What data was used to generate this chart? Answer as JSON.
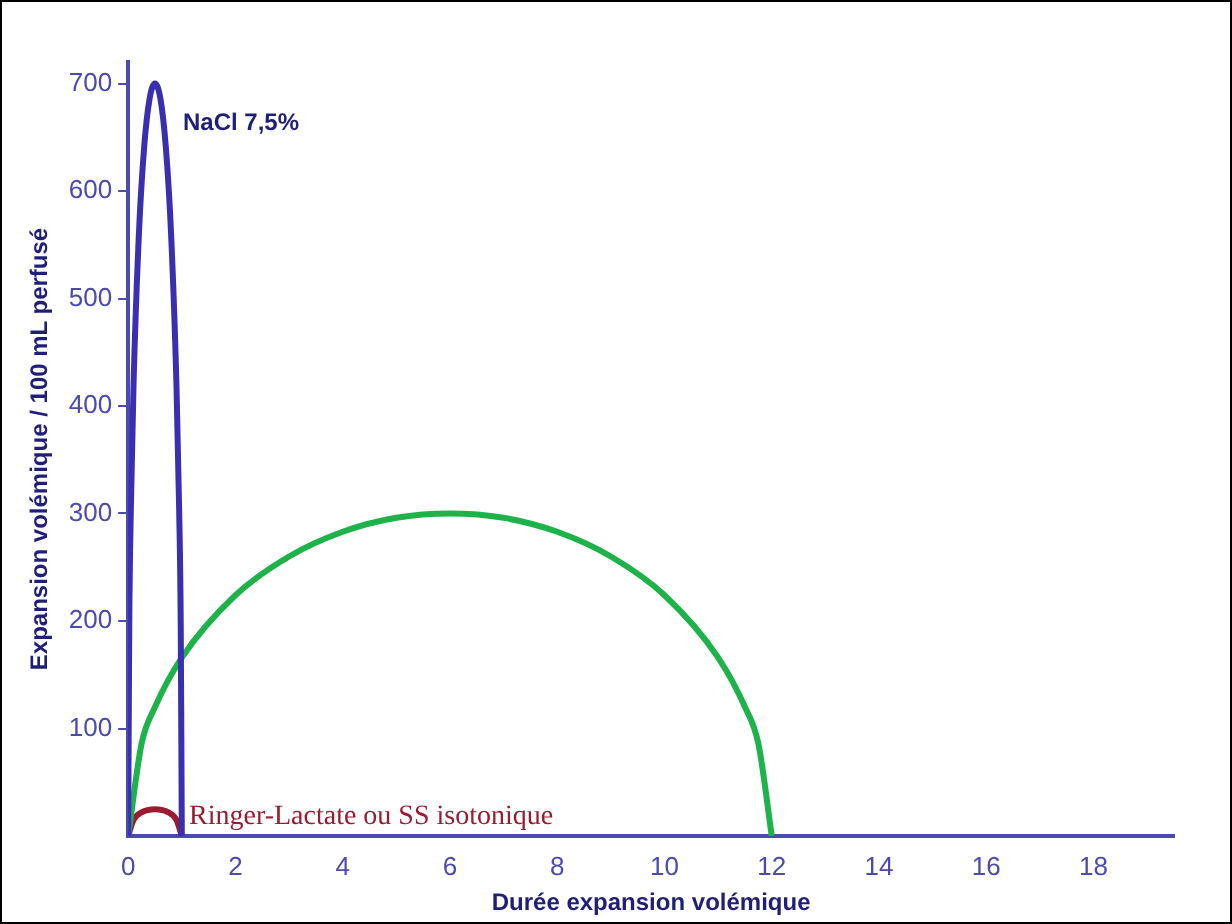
{
  "chart_data": {
    "type": "line",
    "xlabel": "Durée expansion volémique",
    "ylabel": "Expansion volémique / 100 mL perfusé",
    "xlim": [
      0,
      19.5
    ],
    "xticks": [
      0,
      2,
      4,
      6,
      8,
      10,
      12,
      14,
      16,
      18
    ],
    "ylim": [
      0,
      720
    ],
    "yticks": [
      100,
      200,
      300,
      400,
      500,
      600,
      700
    ],
    "grid": false,
    "legend": false,
    "marker": "none",
    "line_style": "solid",
    "series": [
      {
        "name": "NaCl 7,5%",
        "color": "#3a2fb0",
        "x": [
          0,
          0.02,
          0.05,
          0.1,
          0.2,
          0.3,
          0.4,
          0.5,
          0.6,
          0.7,
          0.8,
          0.9,
          0.95,
          0.98,
          1
        ],
        "values": [
          0,
          196,
          305,
          420,
          560,
          642,
          686,
          700,
          686,
          642,
          560,
          420,
          305,
          196,
          0
        ]
      },
      {
        "color": "#1db34a",
        "x": [
          0,
          0.25,
          0.5,
          1,
          2,
          3,
          4,
          5,
          6,
          7,
          8,
          9,
          10,
          11,
          11.5,
          11.75,
          12
        ],
        "values": [
          0,
          86,
          120,
          166,
          224,
          260,
          283,
          296,
          300,
          296,
          283,
          260,
          224,
          166,
          120,
          86,
          0
        ]
      },
      {
        "name": "Ringer-Lactate ou SS isotonique",
        "color": "#9b1b30",
        "x": [
          0,
          0.1,
          0.25,
          0.5,
          0.75,
          0.9,
          1
        ],
        "values": [
          0,
          15,
          22,
          25,
          22,
          15,
          0
        ]
      }
    ]
  }
}
